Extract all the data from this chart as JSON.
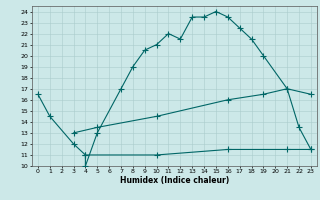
{
  "title": "",
  "xlabel": "Humidex (Indice chaleur)",
  "bg_color": "#cce8e8",
  "grid_color": "#aacccc",
  "line_color": "#006666",
  "xlim": [
    -0.5,
    23.5
  ],
  "ylim": [
    10,
    24.5
  ],
  "xticks": [
    0,
    1,
    2,
    3,
    4,
    5,
    6,
    7,
    8,
    9,
    10,
    11,
    12,
    13,
    14,
    15,
    16,
    17,
    18,
    19,
    20,
    21,
    22,
    23
  ],
  "yticks": [
    10,
    11,
    12,
    13,
    14,
    15,
    16,
    17,
    18,
    19,
    20,
    21,
    22,
    23,
    24
  ],
  "curve1_x": [
    0,
    1,
    3,
    4,
    4,
    5,
    7,
    8,
    9,
    10,
    11,
    12,
    13,
    14,
    15,
    16,
    17,
    18,
    19,
    21,
    22,
    23
  ],
  "curve1_y": [
    16.5,
    14.5,
    12.0,
    11.0,
    10.0,
    13.0,
    17.0,
    19.0,
    20.5,
    21.0,
    22.0,
    21.5,
    23.5,
    23.5,
    24.0,
    23.5,
    22.5,
    21.5,
    20.0,
    17.0,
    13.5,
    11.5
  ],
  "curve2_x": [
    4,
    10,
    16,
    21,
    23
  ],
  "curve2_y": [
    11.0,
    11.0,
    11.5,
    11.5,
    11.5
  ],
  "curve3_x": [
    3,
    5,
    10,
    16,
    19,
    21,
    23
  ],
  "curve3_y": [
    13.0,
    13.5,
    14.5,
    16.0,
    16.5,
    17.0,
    16.5
  ],
  "marker": "+",
  "markersize": 4,
  "linewidth": 0.8,
  "tick_fontsize": 4.5,
  "xlabel_fontsize": 5.5
}
